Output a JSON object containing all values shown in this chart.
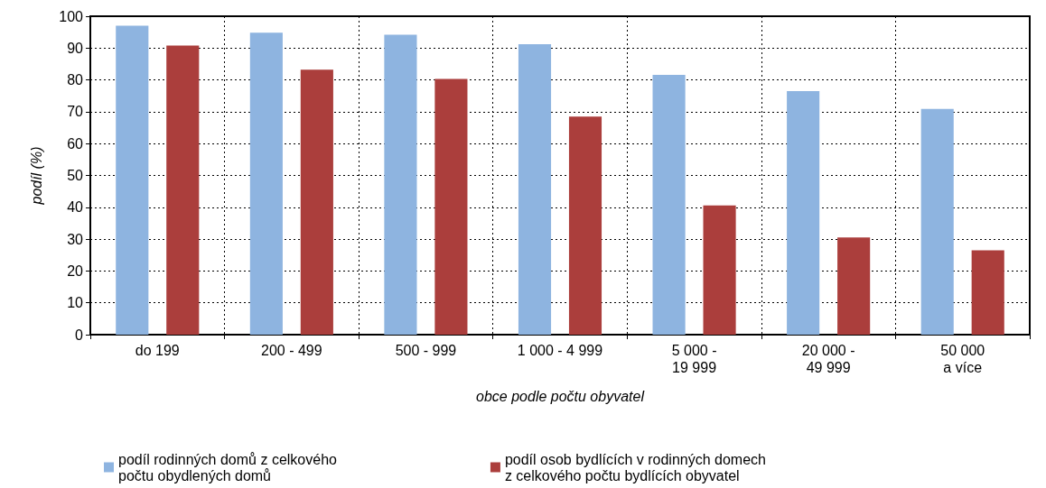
{
  "chart_data": {
    "type": "bar",
    "xlabel": "obce podle počtu obyvatel",
    "ylabel": "podíl (%)",
    "categories": [
      "do 199",
      "200 - 499",
      "500 - 999",
      "1 000 - 4 999",
      "5 000 -\n19 999",
      "20 000 -\n49 999",
      "50 000\na více"
    ],
    "series": [
      {
        "name": "podíl rodinných domů z celkového\npočtu obydlených domů",
        "color": "#8eb4e0",
        "values": [
          97,
          94.8,
          94.2,
          91.2,
          81.6,
          76.5,
          70.9
        ]
      },
      {
        "name": "podíl osob bydlících v rodinných domech\nz celkového počtu bydlících obyvatel",
        "color": "#ab3e3c",
        "values": [
          90.8,
          83.2,
          80.3,
          68.5,
          40.6,
          30.5,
          26.5
        ]
      }
    ],
    "ylim": [
      0,
      100
    ],
    "yticks": [
      0,
      10,
      20,
      30,
      40,
      50,
      60,
      70,
      80,
      90,
      100
    ],
    "grid": true,
    "legend": "bottom"
  }
}
